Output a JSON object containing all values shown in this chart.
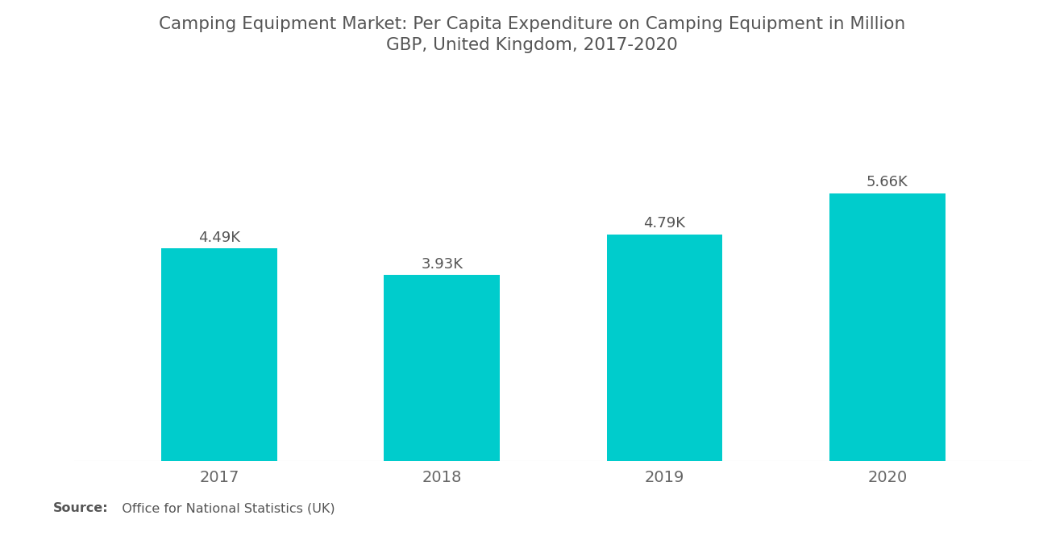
{
  "title": "Camping Equipment Market: Per Capita Expenditure on Camping Equipment in Million\nGBP, United Kingdom, 2017-2020",
  "categories": [
    "2017",
    "2018",
    "2019",
    "2020"
  ],
  "values": [
    4490,
    3930,
    4790,
    5660
  ],
  "labels": [
    "4.49K",
    "3.93K",
    "4.79K",
    "5.66K"
  ],
  "bar_color": "#00CCCC",
  "background_color": "#FFFFFF",
  "title_color": "#555555",
  "label_color": "#555555",
  "xtick_color": "#666666",
  "source_bold": "Source:",
  "source_normal": "   Office for National Statistics (UK)",
  "ylim": [
    0,
    6800
  ],
  "title_fontsize": 15.5,
  "label_fontsize": 13,
  "xtick_fontsize": 14,
  "source_fontsize": 11.5,
  "bar_width": 0.52
}
